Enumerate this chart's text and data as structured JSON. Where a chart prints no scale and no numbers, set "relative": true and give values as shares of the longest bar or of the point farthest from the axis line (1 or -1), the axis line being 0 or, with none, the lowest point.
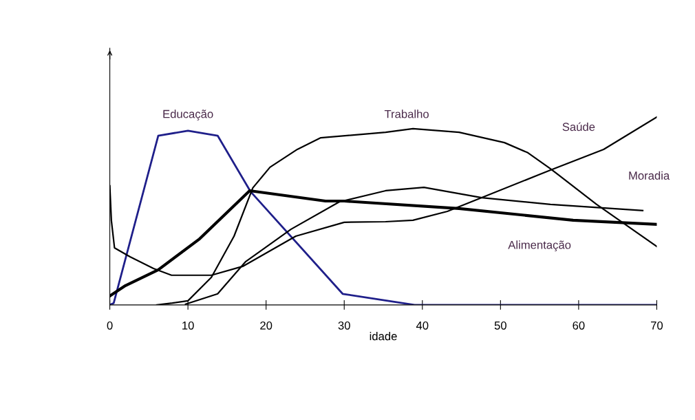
{
  "chart_data": {
    "type": "line",
    "relative": true,
    "xlabel": "idade",
    "xlim": [
      0,
      70
    ],
    "xticks": [
      0,
      10,
      20,
      30,
      40,
      50,
      60,
      70
    ],
    "grid": false,
    "legend": false,
    "marker": "none",
    "series": [
      {
        "name": "Educação",
        "color": "#1f1f8a",
        "x": [
          0,
          0.5,
          6.2,
          10,
          13.8,
          18,
          29.8,
          39,
          70
        ],
        "values": [
          0,
          0.01,
          0.901,
          0.927,
          0.901,
          0.604,
          0.059,
          0,
          0
        ]
      },
      {
        "name": "Trabalho",
        "color": "#000000",
        "x": [
          6,
          8,
          10,
          13,
          15.9,
          18.3,
          20.5,
          24,
          27,
          35.3,
          38.8,
          44.7,
          50.5,
          53.5,
          56.4,
          62.3,
          70
        ],
        "values": [
          0,
          0.01,
          0.022,
          0.147,
          0.366,
          0.623,
          0.733,
          0.828,
          0.89,
          0.919,
          0.938,
          0.919,
          0.864,
          0.81,
          0.725,
          0.535,
          0.311
        ]
      },
      {
        "name": "Saúde",
        "color": "#000000",
        "x": [
          0,
          0.2,
          0.6,
          2.6,
          5.6,
          7.9,
          13,
          17,
          23.8,
          30,
          35.3,
          38.8,
          43.2,
          47.6,
          56.4,
          63.2,
          70
        ],
        "values": [
          0.634,
          0.45,
          0.304,
          0.256,
          0.194,
          0.158,
          0.158,
          0.205,
          0.366,
          0.44,
          0.443,
          0.451,
          0.498,
          0.571,
          0.718,
          0.828,
          1.0
        ]
      },
      {
        "name": "Moradia",
        "color": "#000000",
        "x": [
          9.7,
          13.8,
          17.4,
          23.2,
          29.4,
          35.3,
          40.2,
          47.6,
          56.4,
          68.2
        ],
        "values": [
          0.004,
          0.059,
          0.231,
          0.403,
          0.549,
          0.608,
          0.626,
          0.571,
          0.535,
          0.502
        ]
      },
      {
        "name": "Alimentação",
        "color": "#000000",
        "x": [
          0,
          2,
          6.2,
          11.5,
          17.9,
          27.6,
          30,
          44.7,
          59.3,
          70
        ],
        "values": [
          0.048,
          0.103,
          0.187,
          0.352,
          0.608,
          0.553,
          0.553,
          0.513,
          0.451,
          0.429
        ]
      }
    ]
  }
}
